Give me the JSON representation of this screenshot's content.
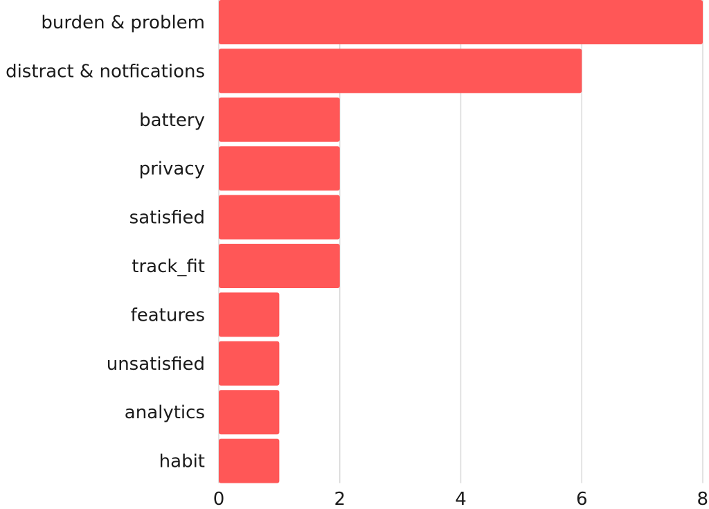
{
  "chart_data": {
    "type": "bar",
    "orientation": "horizontal",
    "title": "",
    "xlabel": "",
    "ylabel": "",
    "categories": [
      "burden & problem",
      "distract & notfications",
      "battery",
      "privacy",
      "satisfied",
      "track_fit",
      "features",
      "unsatisfied",
      "analytics",
      "habit"
    ],
    "values": [
      8,
      6,
      2,
      2,
      2,
      2,
      1,
      1,
      1,
      1
    ],
    "xlim": [
      0,
      8
    ],
    "xticks": [
      "0",
      "2",
      "4",
      "6",
      "8"
    ],
    "grid": true,
    "legend": "none",
    "bar_color": "#ff5757",
    "grid_color": "#d9d9d9",
    "text_color": "#1a1a1a"
  }
}
